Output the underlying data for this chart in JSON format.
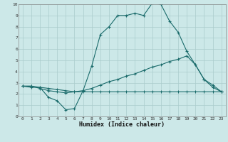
{
  "xlabel": "Humidex (Indice chaleur)",
  "background_color": "#cce8e8",
  "grid_color": "#aacccc",
  "line_color": "#1a6b6b",
  "xlim": [
    -0.5,
    23.5
  ],
  "ylim": [
    0,
    10
  ],
  "xticks": [
    0,
    1,
    2,
    3,
    4,
    5,
    6,
    7,
    8,
    9,
    10,
    11,
    12,
    13,
    14,
    15,
    16,
    17,
    18,
    19,
    20,
    21,
    22,
    23
  ],
  "yticks": [
    0,
    1,
    2,
    3,
    4,
    5,
    6,
    7,
    8,
    9,
    10
  ],
  "line1_x": [
    0,
    1,
    2,
    3,
    4,
    5,
    6,
    7,
    8,
    9,
    10,
    11,
    12,
    13,
    14,
    15,
    16,
    17,
    18,
    19,
    20,
    21,
    22,
    23
  ],
  "line1_y": [
    2.7,
    2.6,
    2.6,
    1.7,
    1.4,
    0.6,
    0.7,
    2.3,
    4.5,
    7.3,
    8.0,
    9.0,
    9.0,
    9.2,
    9.0,
    10.1,
    10.0,
    8.5,
    7.5,
    5.8,
    4.6,
    3.3,
    2.6,
    2.2
  ],
  "line2_x": [
    0,
    1,
    2,
    3,
    4,
    5,
    6,
    7,
    8,
    9,
    10,
    11,
    12,
    13,
    14,
    15,
    16,
    17,
    18,
    19,
    20,
    21,
    22,
    23
  ],
  "line2_y": [
    2.7,
    2.7,
    2.5,
    2.3,
    2.2,
    2.1,
    2.2,
    2.3,
    2.5,
    2.8,
    3.1,
    3.3,
    3.6,
    3.8,
    4.1,
    4.4,
    4.6,
    4.9,
    5.1,
    5.4,
    4.6,
    3.3,
    2.8,
    2.2
  ],
  "line3_x": [
    0,
    1,
    2,
    3,
    4,
    5,
    6,
    7,
    8,
    9,
    10,
    11,
    12,
    13,
    14,
    15,
    16,
    17,
    18,
    19,
    20,
    21,
    22,
    23
  ],
  "line3_y": [
    2.7,
    2.7,
    2.6,
    2.5,
    2.4,
    2.3,
    2.2,
    2.2,
    2.2,
    2.2,
    2.2,
    2.2,
    2.2,
    2.2,
    2.2,
    2.2,
    2.2,
    2.2,
    2.2,
    2.2,
    2.2,
    2.2,
    2.2,
    2.2
  ]
}
